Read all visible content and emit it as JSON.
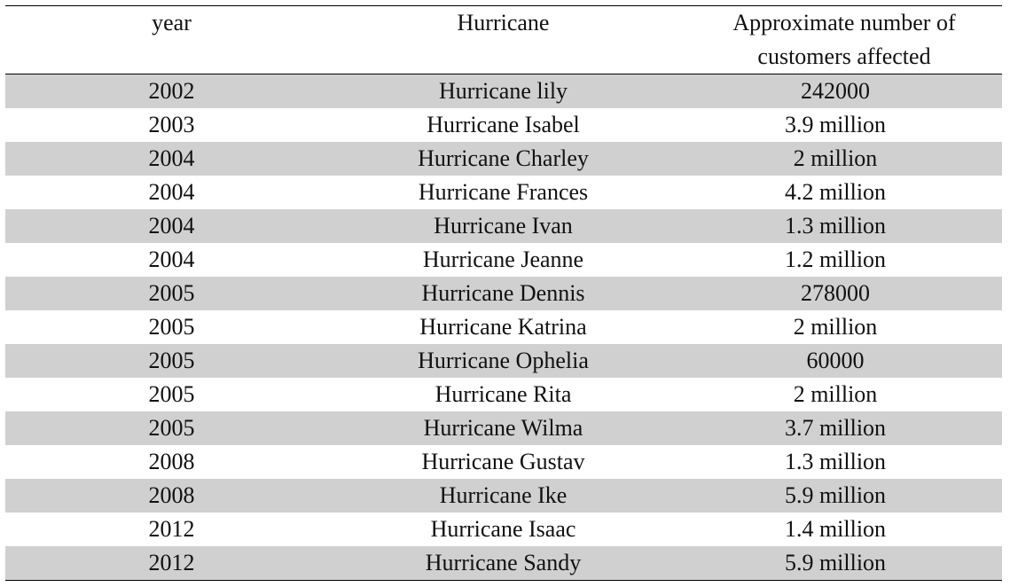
{
  "table": {
    "headers": [
      "year",
      "Hurricane",
      "Approximate number of customers affected"
    ],
    "rows": [
      [
        "2002",
        "Hurricane lily",
        "242000"
      ],
      [
        "2003",
        "Hurricane Isabel",
        "3.9 million"
      ],
      [
        "2004",
        "Hurricane Charley",
        "2 million"
      ],
      [
        "2004",
        "Hurricane Frances",
        "4.2 million"
      ],
      [
        "2004",
        "Hurricane Ivan",
        "1.3 million"
      ],
      [
        "2004",
        "Hurricane Jeanne",
        "1.2 million"
      ],
      [
        "2005",
        "Hurricane Dennis",
        "278000"
      ],
      [
        "2005",
        "Hurricane Katrina",
        "2 million"
      ],
      [
        "2005",
        "Hurricane Ophelia",
        "60000"
      ],
      [
        "2005",
        "Hurricane Rita",
        "2 million"
      ],
      [
        "2005",
        "Hurricane Wilma",
        "3.7 million"
      ],
      [
        "2008",
        "Hurricane Gustav",
        "1.3 million"
      ],
      [
        "2008",
        "Hurricane Ike",
        "5.9 million"
      ],
      [
        "2012",
        "Hurricane Isaac",
        "1.4 million"
      ],
      [
        "2012",
        "Hurricane Sandy",
        "5.9 million"
      ]
    ]
  },
  "colors": {
    "shaded_row": "#d0d0d0",
    "rule": "#000000",
    "text": "#111111"
  }
}
